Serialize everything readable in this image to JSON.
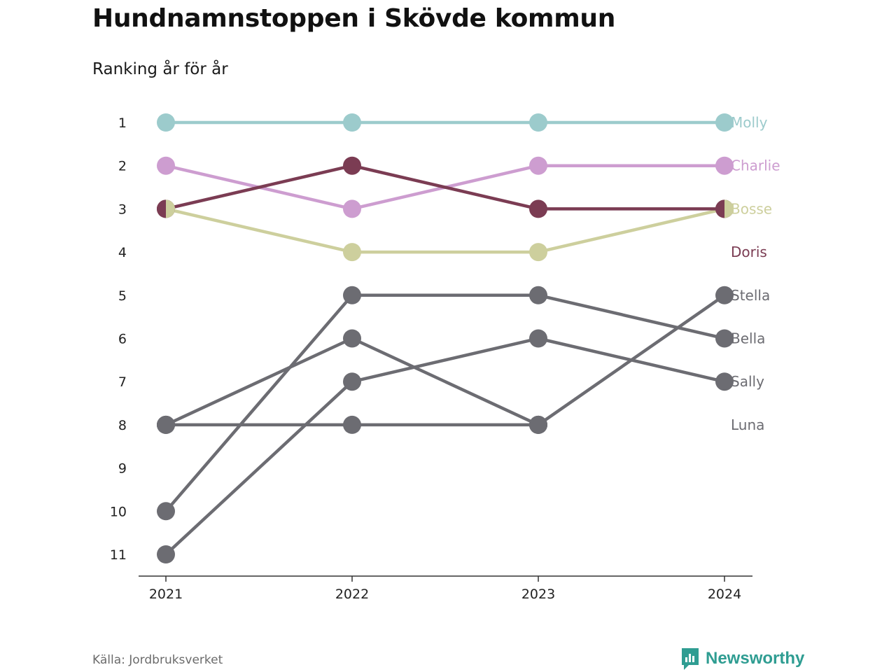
{
  "header": {
    "title": "Hundnamnstoppen i Skövde kommun",
    "subtitle": "Ranking år för år"
  },
  "footer": {
    "source": "Källa: Jordbruksverket",
    "brand": "Newsworthy",
    "brand_color": "#2f9d92"
  },
  "chart_data": {
    "type": "line",
    "subtype": "bump",
    "x": [
      "2021",
      "2022",
      "2023",
      "2024"
    ],
    "y_ticks": [
      "1",
      "2",
      "3",
      "4",
      "5",
      "6",
      "7",
      "8",
      "9",
      "10",
      "11"
    ],
    "ylim": [
      1,
      11
    ],
    "y_inverted": true,
    "grid": false,
    "legend": "direct labels at right end",
    "series": [
      {
        "name": "Molly",
        "color": "#9ccbcc",
        "values": [
          1,
          1,
          1,
          1
        ],
        "label_rank": 1
      },
      {
        "name": "Charlie",
        "color": "#cd9dd0",
        "values": [
          2,
          3,
          2,
          2
        ],
        "label_rank": 2
      },
      {
        "name": "Bosse",
        "color": "#cdcf9d",
        "values": [
          3,
          4,
          4,
          3
        ],
        "label_rank": 3
      },
      {
        "name": "Doris",
        "color": "#7b3c53",
        "values": [
          3,
          2,
          3,
          3
        ],
        "label_rank": 4
      },
      {
        "name": "Stella",
        "color": "#6c6c72",
        "values": [
          8,
          8,
          8,
          5
        ],
        "label_rank": 5
      },
      {
        "name": "Bella",
        "color": "#6c6c72",
        "values": [
          10,
          5,
          5,
          6
        ],
        "label_rank": 6
      },
      {
        "name": "Sally",
        "color": "#6c6c72",
        "values": [
          11,
          7,
          6,
          7
        ],
        "label_rank": 7
      },
      {
        "name": "Luna",
        "color": "#6c6c72",
        "values": [
          8,
          6,
          8,
          null
        ],
        "label_rank": 8
      }
    ]
  }
}
